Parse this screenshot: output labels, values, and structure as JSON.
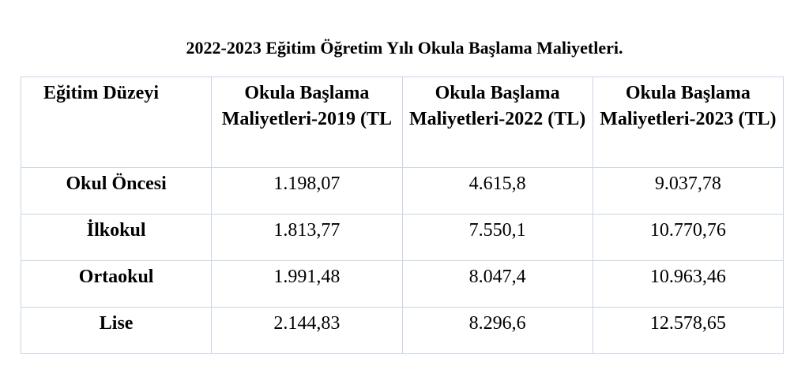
{
  "header": {
    "title": "2022-2023 Eğitim Öğretim Yılı Okula Başlama Maliyetleri."
  },
  "table": {
    "columns": [
      "Eğitim Düzeyi",
      "Okula Başlama Maliyetleri-2019 (TL",
      "Okula Başlama Maliyetleri-2022 (TL)",
      "Okula Başlama Maliyetleri-2023 (TL)"
    ],
    "rows": [
      [
        "Okul Öncesi",
        "1.198,07",
        "4.615,8",
        "9.037,78"
      ],
      [
        "İlkokul",
        "1.813,77",
        "7.550,1",
        "10.770,76"
      ],
      [
        "Ortaokul",
        "1.991,48",
        "8.047,4",
        "10.963,46"
      ],
      [
        "Lise",
        "2.144,83",
        "8.296,6",
        "12.578,65"
      ]
    ]
  }
}
